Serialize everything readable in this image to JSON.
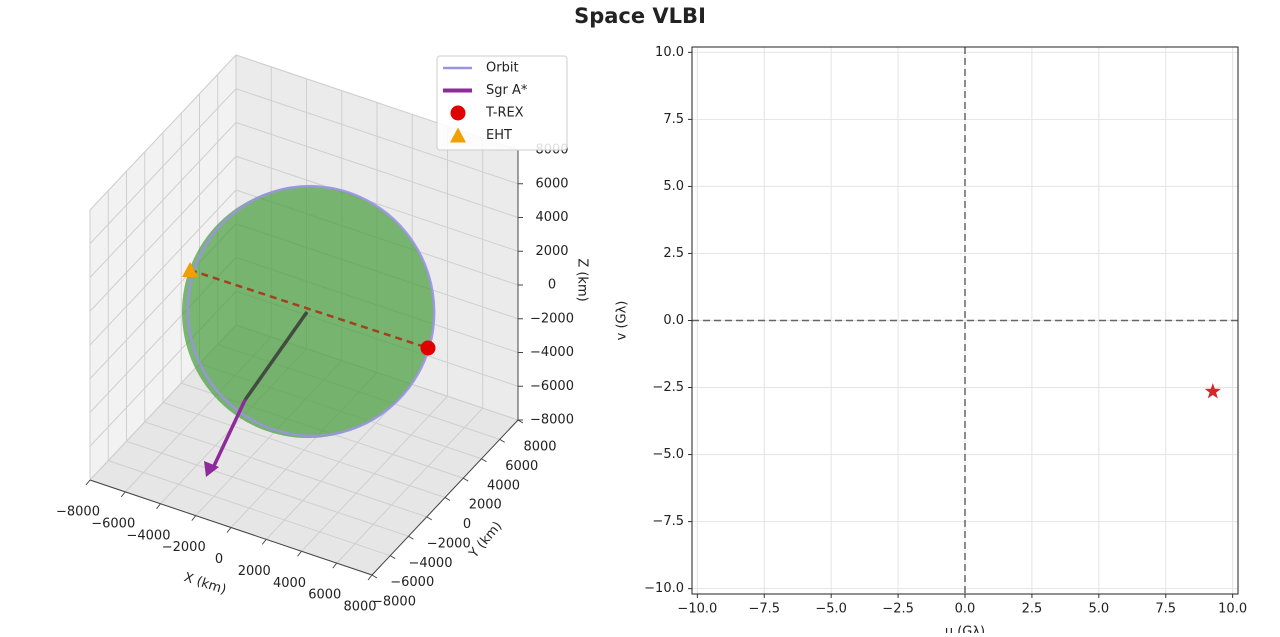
{
  "title": "Space VLBI",
  "chart_data": [
    {
      "type": "line3d",
      "xlabel": "X (km)",
      "ylabel": "Y (km)",
      "zlabel": "Z (km)",
      "xlim": [
        -8000,
        8000
      ],
      "ylim": [
        -8000,
        8000
      ],
      "zlim": [
        -8000,
        8000
      ],
      "xticks": [
        {
          "value": -8000,
          "label": "−8000"
        },
        {
          "value": -6000,
          "label": "−6000"
        },
        {
          "value": -4000,
          "label": "−4000"
        },
        {
          "value": -2000,
          "label": "−2000"
        },
        0,
        2000,
        4000,
        6000,
        8000
      ],
      "yticks": [
        {
          "value": -8000,
          "label": "−8000"
        },
        {
          "value": -6000,
          "label": "−6000"
        },
        {
          "value": -4000,
          "label": "−4000"
        },
        {
          "value": -2000,
          "label": "−2000"
        },
        0,
        2000,
        4000,
        6000,
        8000
      ],
      "zticks": [
        {
          "value": -8000,
          "label": "−8000"
        },
        {
          "value": -6000,
          "label": "−6000"
        },
        {
          "value": -4000,
          "label": "−4000"
        },
        {
          "value": -2000,
          "label": "−2000"
        },
        0,
        2000,
        4000,
        6000,
        8000
      ],
      "grid": true,
      "legend": "upper right",
      "series": [
        {
          "name": "Orbit",
          "color": "#9a93e3",
          "marker": "line"
        },
        {
          "name": "Sgr A*",
          "color": "#8e2a9b",
          "marker": "thick-line"
        },
        {
          "name": "T-REX",
          "color": "#e00000",
          "marker": "circle"
        },
        {
          "name": "EHT",
          "color": "#f0a000",
          "marker": "triangle"
        }
      ]
    },
    {
      "type": "scatter",
      "xlabel": "u (Gλ)",
      "ylabel": "v (Gλ)",
      "xlim": [
        -10.2,
        10.2
      ],
      "ylim": [
        -10.2,
        10.2
      ],
      "xticks": [
        {
          "value": -10,
          "label": "−10.0"
        },
        {
          "value": -7.5,
          "label": "−7.5"
        },
        {
          "value": -5,
          "label": "−5.0"
        },
        {
          "value": -2.5,
          "label": "−2.5"
        },
        {
          "value": 0,
          "label": "0.0"
        },
        2.5,
        {
          "value": 5,
          "label": "5.0"
        },
        7.5,
        {
          "value": 10,
          "label": "10.0"
        }
      ],
      "yticks": [
        {
          "value": -10,
          "label": "−10.0"
        },
        {
          "value": -7.5,
          "label": "−7.5"
        },
        {
          "value": -5,
          "label": "−5.0"
        },
        {
          "value": -2.5,
          "label": "−2.5"
        },
        {
          "value": 0,
          "label": "0.0"
        },
        2.5,
        {
          "value": 5,
          "label": "5.0"
        },
        7.5,
        {
          "value": 10,
          "label": "10.0"
        }
      ],
      "grid": true,
      "zero_lines": true,
      "x": [
        9.26
      ],
      "values": [
        -2.65
      ],
      "color": "#d62728",
      "marker": "star"
    }
  ]
}
